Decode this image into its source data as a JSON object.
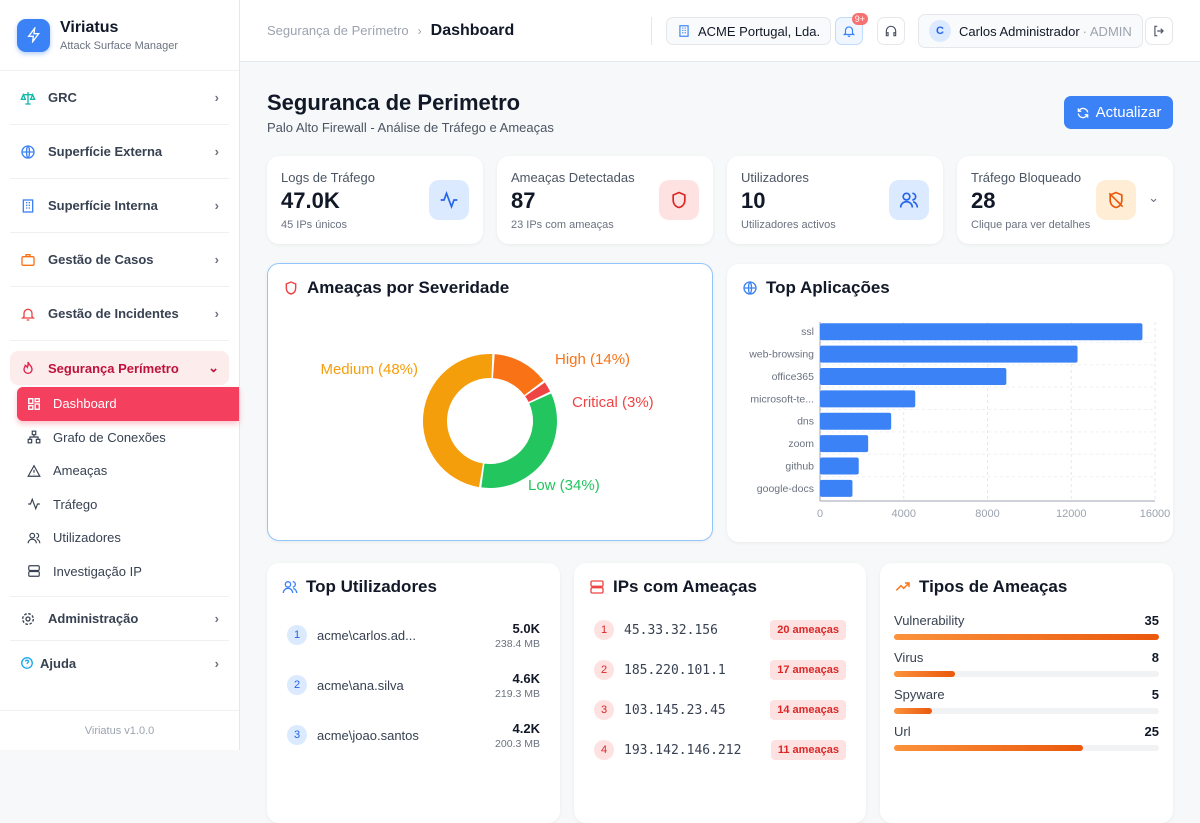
{
  "app": {
    "name": "Viriatus",
    "subtitle": "Attack Surface Manager",
    "version": "Viriatus v1.0.0"
  },
  "sidebar": {
    "groups": [
      {
        "label": "GRC"
      },
      {
        "label": "Superfície Externa"
      },
      {
        "label": "Superfície Interna"
      },
      {
        "label": "Gestão de Casos"
      },
      {
        "label": "Gestão de Incidentes"
      },
      {
        "label": "Segurança Perímetro"
      },
      {
        "label": "Administração"
      },
      {
        "label": "Ajuda"
      }
    ],
    "sub_items": [
      {
        "label": "Dashboard"
      },
      {
        "label": "Grafo de Conexões"
      },
      {
        "label": "Ameaças"
      },
      {
        "label": "Tráfego"
      },
      {
        "label": "Utilizadores"
      },
      {
        "label": "Investigação IP"
      }
    ]
  },
  "header": {
    "breadcrumb_parent": "Segurança de Perímetro",
    "breadcrumb_current": "Dashboard",
    "org": "ACME Portugal, Lda.",
    "notif_badge": "9+",
    "user_initial": "C",
    "user_name": "Carlos Administrador",
    "user_role": "· ADMIN"
  },
  "page": {
    "title": "Seguranca de Perimetro",
    "subtitle": "Palo Alto Firewall - Análise de Tráfego e Ameaças",
    "refresh": "Actualizar"
  },
  "stats": [
    {
      "label": "Logs de Tráfego",
      "value": "47.0K",
      "hint": "45 IPs únicos"
    },
    {
      "label": "Ameaças Detectadas",
      "value": "87",
      "hint": "23 IPs com ameaças"
    },
    {
      "label": "Utilizadores",
      "value": "10",
      "hint": "Utilizadores activos"
    },
    {
      "label": "Tráfego Bloqueado",
      "value": "28",
      "hint": "Clique para ver detalhes"
    }
  ],
  "chart_data": [
    {
      "type": "pie",
      "title": "Ameaças por Severidade",
      "slices": [
        {
          "name": "High",
          "value": 14,
          "label": "High (14%)",
          "color": "#f97316"
        },
        {
          "name": "Critical",
          "value": 3,
          "label": "Critical (3%)",
          "color": "#ef4444"
        },
        {
          "name": "Low",
          "value": 34,
          "label": "Low (34%)",
          "color": "#22c55e"
        },
        {
          "name": "Medium",
          "value": 48,
          "label": "Medium (48%)",
          "color": "#f59e0b"
        }
      ]
    },
    {
      "type": "bar",
      "orientation": "horizontal",
      "title": "Top Aplicações",
      "categories": [
        "ssl",
        "web-browsing",
        "office365",
        "microsoft-te...",
        "dns",
        "zoom",
        "github",
        "google-docs"
      ],
      "values": [
        15400,
        12300,
        8900,
        4550,
        3400,
        2300,
        1850,
        1550
      ],
      "xlim": [
        0,
        16000
      ],
      "xticks": [
        "0",
        "4000",
        "8000",
        "12000",
        "16000"
      ],
      "grid": true,
      "color": "#3b82f6"
    }
  ],
  "top_users": {
    "title": "Top Utilizadores",
    "rows": [
      {
        "rank": "1",
        "name": "acme\\carlos.ad...",
        "count": "5.0K",
        "size": "238.4 MB"
      },
      {
        "rank": "2",
        "name": "acme\\ana.silva",
        "count": "4.6K",
        "size": "219.3 MB"
      },
      {
        "rank": "3",
        "name": "acme\\joao.santos",
        "count": "4.2K",
        "size": "200.3 MB"
      }
    ]
  },
  "threat_ips": {
    "title": "IPs com Ameaças",
    "rows": [
      {
        "rank": "1",
        "ip": "45.33.32.156",
        "badge": "20 ameaças"
      },
      {
        "rank": "2",
        "ip": "185.220.101.1",
        "badge": "17 ameaças"
      },
      {
        "rank": "3",
        "ip": "103.145.23.45",
        "badge": "14 ameaças"
      },
      {
        "rank": "4",
        "ip": "193.142.146.212",
        "badge": "11 ameaças"
      }
    ]
  },
  "threat_types": {
    "title": "Tipos de Ameaças",
    "max": 35,
    "rows": [
      {
        "name": "Vulnerability",
        "count": 35
      },
      {
        "name": "Virus",
        "count": 8
      },
      {
        "name": "Spyware",
        "count": 5
      },
      {
        "name": "Url",
        "count": 25
      }
    ]
  }
}
